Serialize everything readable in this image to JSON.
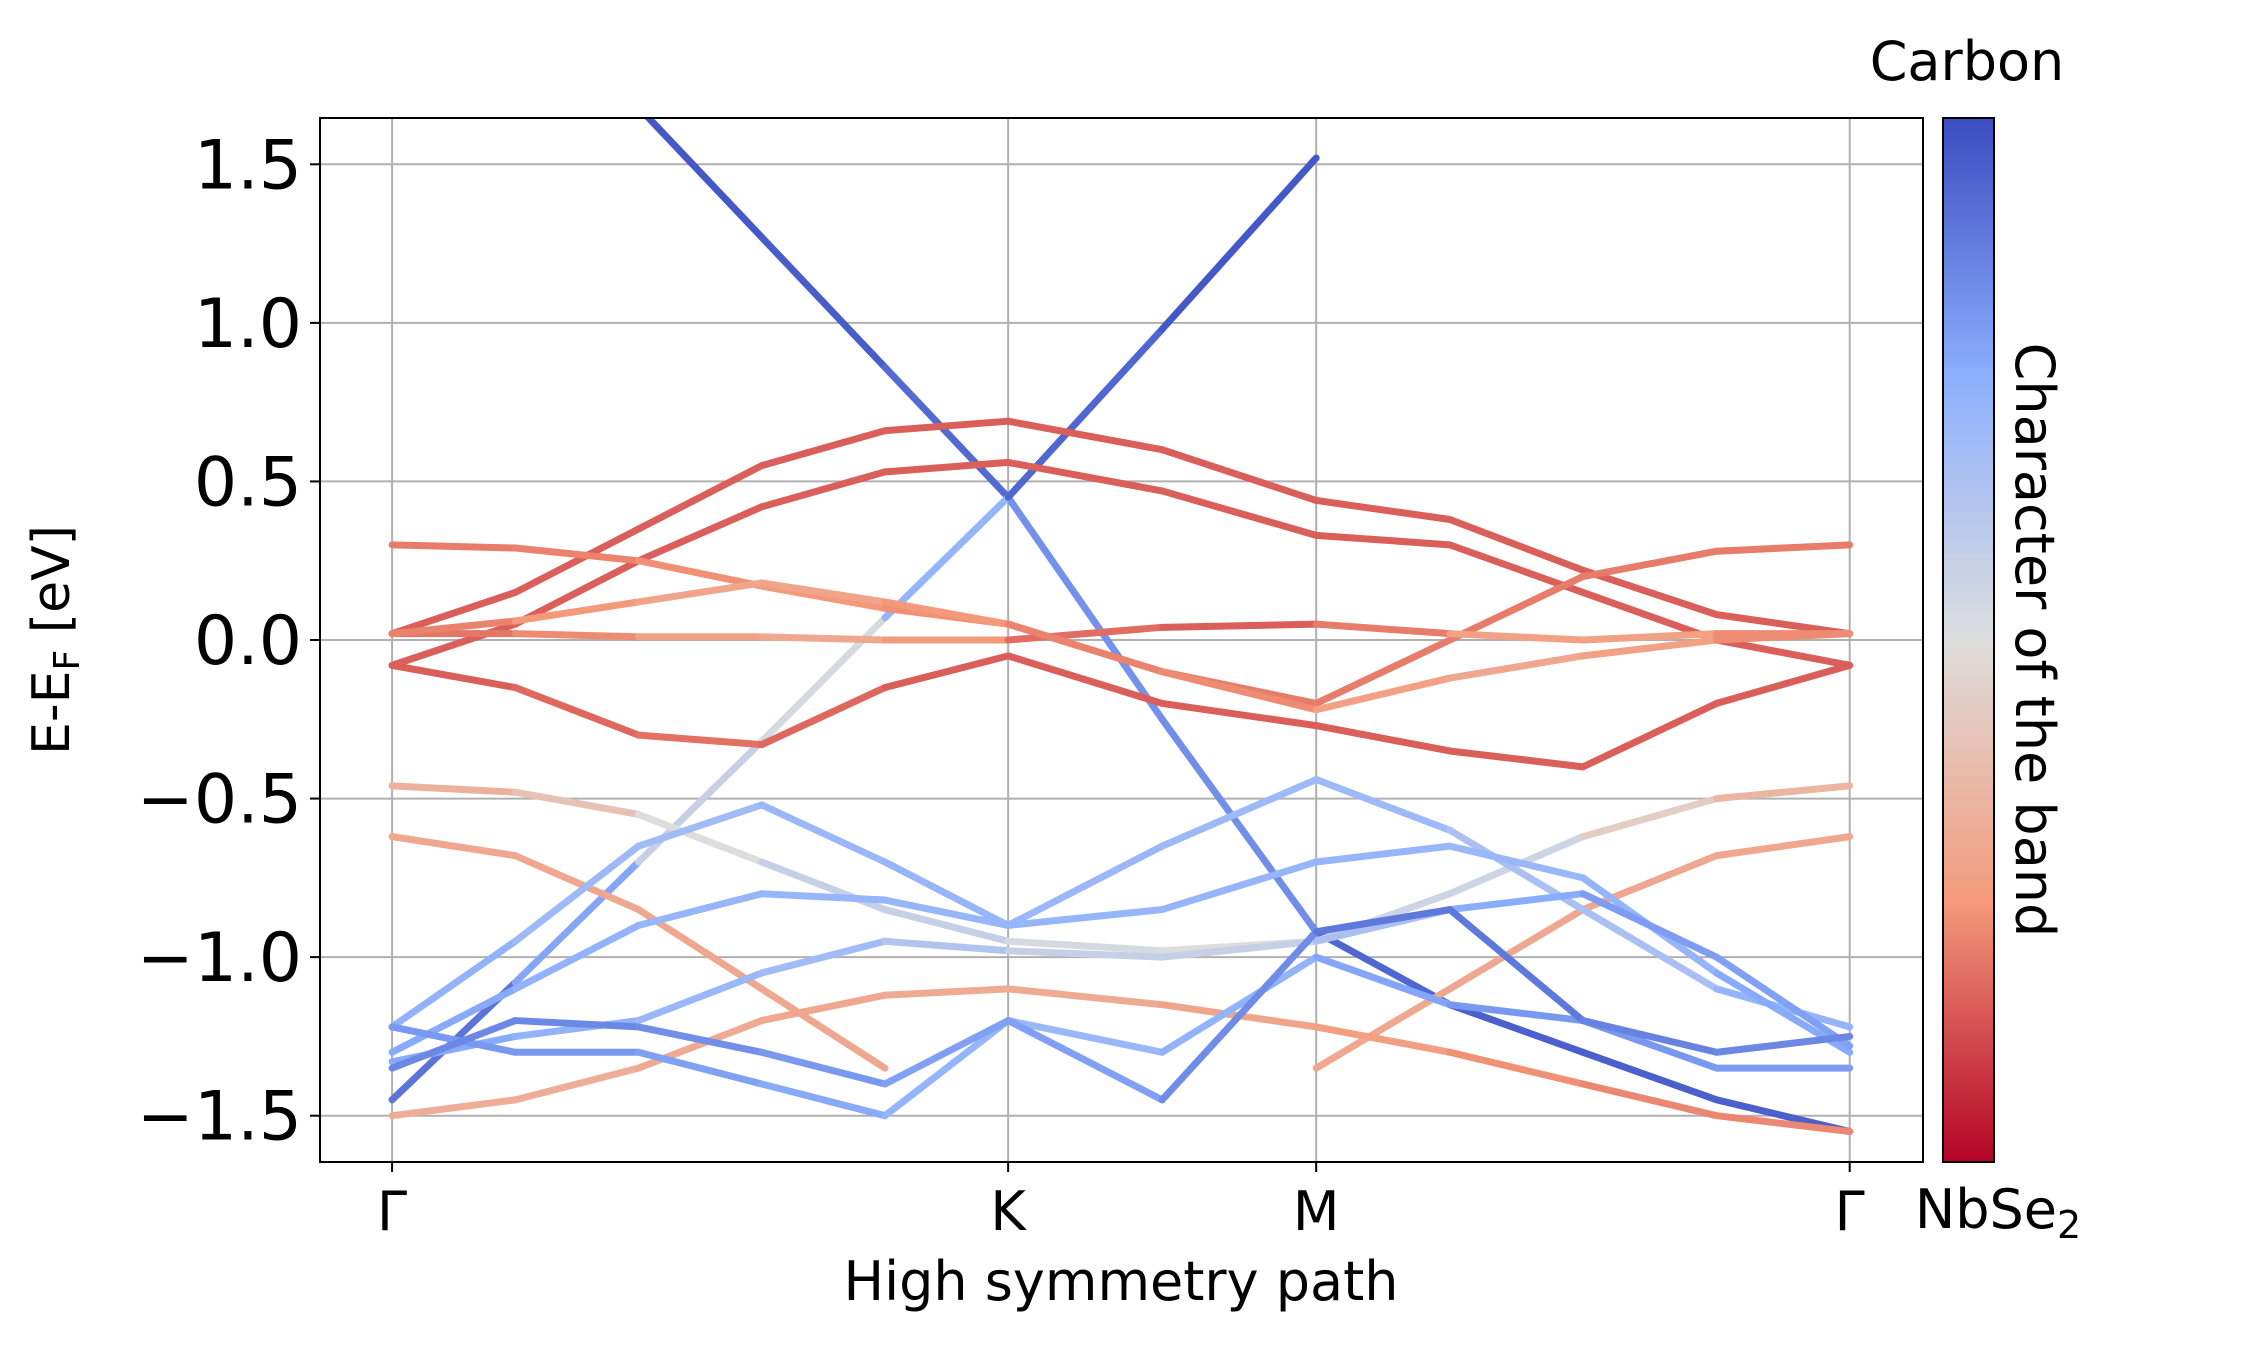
{
  "chart_data": {
    "type": "band-structure",
    "ylabel": {
      "main": "E-E",
      "sub": "F",
      "unit": " [eV]"
    },
    "xlabel": "High symmetry path",
    "colorbar": {
      "label": "Character of the band",
      "top": "Carbon",
      "bottom": {
        "main": "NbSe",
        "sub": "2"
      }
    },
    "colormap": [
      "#b40426",
      "#f49a7b",
      "#dddddd",
      "#8db0fe",
      "#3b4cc0"
    ],
    "clim": [
      0,
      1
    ],
    "grid": true,
    "xlim": [
      -0.117,
      2.485
    ],
    "ylim": [
      -1.646,
      1.646
    ],
    "xticks": [
      {
        "value": 0,
        "label": "Γ"
      },
      {
        "value": 1,
        "label": "K"
      },
      {
        "value": 1.5,
        "label": "M"
      },
      {
        "value": 2.366,
        "label": "Γ"
      }
    ],
    "yticks": [
      {
        "value": -1.5,
        "label": "−1.5"
      },
      {
        "value": -1.0,
        "label": "−1.0"
      },
      {
        "value": -0.5,
        "label": "−0.5"
      },
      {
        "value": 0.0,
        "label": "0.0"
      },
      0.5,
      {
        "value": 1.0,
        "label": "1.0"
      },
      1.5
    ],
    "x": [
      0,
      0.2,
      0.4,
      0.6,
      0.8,
      1.0,
      1.25,
      1.5,
      1.717,
      1.933,
      2.15,
      2.366
    ],
    "series": [
      {
        "values": [
          null,
          null,
          1.68,
          1.27,
          0.86,
          0.45,
          -0.25,
          -0.92,
          -1.15,
          -1.3,
          -1.45,
          -1.55
        ],
        "character": [
          null,
          null,
          0.97,
          0.97,
          0.95,
          0.9,
          0.75,
          0.92,
          0.95,
          0.95,
          0.95,
          0.95
        ]
      },
      {
        "values": [
          -1.45,
          -1.08,
          -0.7,
          -0.32,
          0.07,
          0.45,
          0.98,
          1.52,
          null,
          null,
          null,
          null
        ],
        "character": [
          0.9,
          0.9,
          0.65,
          0.5,
          0.55,
          0.9,
          0.97,
          0.97,
          null,
          null,
          null,
          null
        ]
      },
      {
        "values": [
          0.02,
          0.15,
          0.35,
          0.55,
          0.66,
          0.69,
          0.6,
          0.44,
          0.38,
          0.22,
          0.08,
          0.02
        ],
        "character": [
          0.15,
          0.15,
          0.15,
          0.15,
          0.15,
          0.15,
          0.15,
          0.15,
          0.15,
          0.15,
          0.15,
          0.15
        ]
      },
      {
        "values": [
          -0.08,
          0.05,
          0.25,
          0.42,
          0.53,
          0.56,
          0.47,
          0.33,
          0.3,
          0.15,
          0.0,
          -0.08
        ],
        "character": [
          0.15,
          0.15,
          0.15,
          0.15,
          0.15,
          0.15,
          0.15,
          0.15,
          0.15,
          0.15,
          0.15,
          0.15
        ]
      },
      {
        "values": [
          0.3,
          0.29,
          0.25,
          0.17,
          0.1,
          0.05,
          -0.1,
          -0.2,
          0.0,
          0.2,
          0.28,
          0.3
        ],
        "character": [
          0.2,
          0.2,
          0.22,
          0.25,
          0.25,
          0.22,
          0.2,
          0.2,
          0.2,
          0.2,
          0.2,
          0.2
        ]
      },
      {
        "values": [
          0.02,
          0.02,
          0.01,
          0.01,
          0.0,
          0.0,
          0.04,
          0.05,
          0.02,
          0.0,
          0.02,
          0.02
        ],
        "character": [
          0.18,
          0.2,
          0.25,
          0.3,
          0.3,
          0.2,
          0.15,
          0.15,
          0.25,
          0.3,
          0.25,
          0.2
        ]
      },
      {
        "values": [
          -0.08,
          -0.15,
          -0.3,
          -0.33,
          -0.15,
          -0.05,
          -0.2,
          -0.27,
          -0.35,
          -0.4,
          -0.2,
          -0.08
        ],
        "character": [
          0.15,
          0.15,
          0.18,
          0.18,
          0.15,
          0.15,
          0.15,
          0.15,
          0.15,
          0.15,
          0.15,
          0.15
        ]
      },
      {
        "values": [
          0.02,
          0.06,
          0.12,
          0.18,
          0.12,
          0.05,
          -0.1,
          -0.22,
          -0.12,
          -0.05,
          0.0,
          0.02
        ],
        "character": [
          0.2,
          0.22,
          0.28,
          0.3,
          0.28,
          0.22,
          0.2,
          0.25,
          0.3,
          0.3,
          0.25,
          0.2
        ]
      },
      {
        "values": [
          -0.46,
          -0.48,
          -0.55,
          -0.7,
          -0.85,
          -0.95,
          -0.98,
          -0.95,
          -0.8,
          -0.62,
          -0.5,
          -0.46
        ],
        "character": [
          0.32,
          0.35,
          0.45,
          0.55,
          0.6,
          0.55,
          0.5,
          0.5,
          0.6,
          0.5,
          0.38,
          0.32
        ]
      },
      {
        "values": [
          -0.62,
          -0.68,
          -0.85,
          -1.1,
          -1.35,
          null,
          null,
          -1.35,
          -1.1,
          -0.85,
          -0.68,
          -0.62
        ],
        "character": [
          0.3,
          0.3,
          0.3,
          0.3,
          0.3,
          null,
          null,
          0.3,
          0.3,
          0.3,
          0.3,
          0.3
        ]
      },
      {
        "values": [
          -1.5,
          -1.45,
          -1.35,
          -1.2,
          -1.12,
          -1.1,
          -1.15,
          -1.22,
          -1.3,
          -1.4,
          -1.5,
          -1.55
        ],
        "character": [
          0.32,
          0.32,
          0.32,
          0.3,
          0.3,
          0.32,
          0.3,
          0.28,
          0.25,
          0.22,
          0.22,
          0.22
        ]
      },
      {
        "values": [
          -1.22,
          -0.95,
          -0.65,
          -0.52,
          -0.7,
          -0.9,
          -0.65,
          -0.44,
          -0.6,
          -0.85,
          -1.1,
          -1.22
        ],
        "character": [
          0.75,
          0.72,
          0.68,
          0.7,
          0.72,
          0.72,
          0.7,
          0.7,
          0.7,
          0.62,
          0.7,
          0.75
        ]
      },
      {
        "values": [
          -1.3,
          -1.1,
          -0.9,
          -0.8,
          -0.82,
          -0.9,
          -0.85,
          -0.7,
          -0.65,
          -0.75,
          -1.05,
          -1.3
        ],
        "character": [
          0.78,
          0.75,
          0.72,
          0.72,
          0.72,
          0.72,
          0.72,
          0.72,
          0.72,
          0.7,
          0.75,
          0.78
        ]
      },
      {
        "values": [
          -1.33,
          -1.25,
          -1.2,
          -1.05,
          -0.95,
          -0.98,
          -1.0,
          -0.95,
          -0.85,
          -0.8,
          -1.0,
          -1.28
        ],
        "character": [
          0.78,
          0.75,
          0.72,
          0.7,
          0.68,
          0.6,
          0.55,
          0.6,
          0.72,
          0.8,
          0.8,
          0.78
        ]
      },
      {
        "values": [
          -1.22,
          -1.3,
          -1.3,
          -1.4,
          -1.5,
          -1.2,
          -1.3,
          -1.0,
          -1.15,
          -1.2,
          -1.35,
          -1.35
        ],
        "character": [
          0.8,
          0.82,
          0.8,
          0.78,
          0.75,
          0.7,
          0.72,
          0.75,
          0.8,
          0.82,
          0.8,
          0.8
        ]
      },
      {
        "values": [
          -1.35,
          -1.2,
          -1.22,
          -1.3,
          -1.4,
          -1.2,
          -1.45,
          -0.92,
          -0.85,
          -1.2,
          -1.3,
          -1.25
        ],
        "character": [
          0.85,
          0.85,
          0.85,
          0.82,
          0.8,
          0.78,
          0.8,
          0.88,
          0.9,
          0.88,
          0.85,
          0.85
        ]
      }
    ]
  }
}
